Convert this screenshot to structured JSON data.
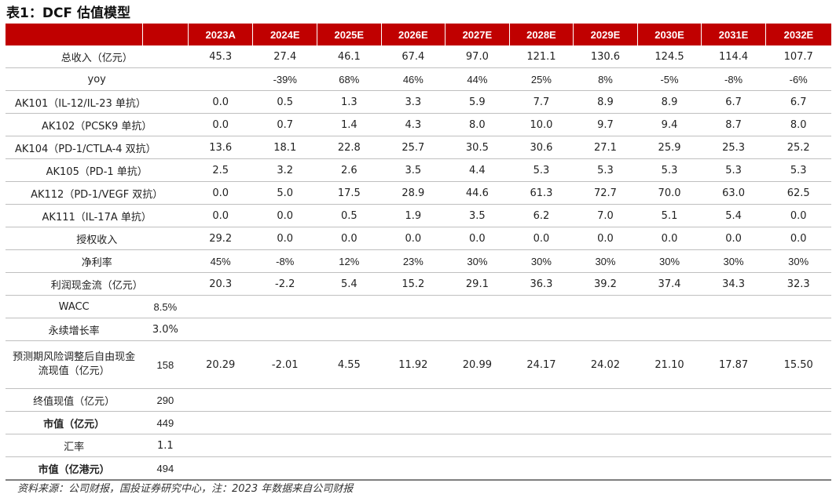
{
  "title": "表1：DCF 估值模型",
  "header": {
    "years": [
      "2023A",
      "2024E",
      "2025E",
      "2026E",
      "2027E",
      "2028E",
      "2029E",
      "2030E",
      "2031E",
      "2032E"
    ]
  },
  "rows": {
    "revenue": {
      "label": "总收入（亿元）",
      "values": [
        "45.3",
        "27.4",
        "46.1",
        "67.4",
        "97.0",
        "121.1",
        "130.6",
        "124.5",
        "114.4",
        "107.7"
      ]
    },
    "yoy": {
      "label": "yoy",
      "values": [
        "",
        "-39%",
        "68%",
        "46%",
        "44%",
        "25%",
        "8%",
        "-5%",
        "-8%",
        "-6%"
      ]
    },
    "ak101": {
      "label": "AK101（IL-12/IL-23 单抗）",
      "values": [
        "0.0",
        "0.5",
        "1.3",
        "3.3",
        "5.9",
        "7.7",
        "8.9",
        "8.9",
        "6.7",
        "6.7"
      ]
    },
    "ak102": {
      "label": "AK102（PCSK9 单抗）",
      "values": [
        "0.0",
        "0.7",
        "1.4",
        "4.3",
        "8.0",
        "10.0",
        "9.7",
        "9.4",
        "8.7",
        "8.0"
      ]
    },
    "ak104": {
      "label": "AK104（PD-1/CTLA-4 双抗）",
      "values": [
        "13.6",
        "18.1",
        "22.8",
        "25.7",
        "30.5",
        "30.6",
        "27.1",
        "25.9",
        "25.3",
        "25.2"
      ]
    },
    "ak105": {
      "label": "AK105（PD-1 单抗）",
      "values": [
        "2.5",
        "3.2",
        "2.6",
        "3.5",
        "4.4",
        "5.3",
        "5.3",
        "5.3",
        "5.3",
        "5.3"
      ]
    },
    "ak112": {
      "label": "AK112（PD-1/VEGF 双抗）",
      "values": [
        "0.0",
        "5.0",
        "17.5",
        "28.9",
        "44.6",
        "61.3",
        "72.7",
        "70.0",
        "63.0",
        "62.5"
      ]
    },
    "ak111": {
      "label": "AK111（IL-17A 单抗）",
      "values": [
        "0.0",
        "0.0",
        "0.5",
        "1.9",
        "3.5",
        "6.2",
        "7.0",
        "5.1",
        "5.4",
        "0.0"
      ]
    },
    "license": {
      "label": "授权收入",
      "values": [
        "29.2",
        "0.0",
        "0.0",
        "0.0",
        "0.0",
        "0.0",
        "0.0",
        "0.0",
        "0.0",
        "0.0"
      ]
    },
    "net_margin": {
      "label": "净利率",
      "values": [
        "45%",
        "-8%",
        "12%",
        "23%",
        "30%",
        "30%",
        "30%",
        "30%",
        "30%",
        "30%"
      ]
    },
    "cashflow": {
      "label": "利润现金流（亿元）",
      "values": [
        "20.3",
        "-2.2",
        "5.4",
        "15.2",
        "29.1",
        "36.3",
        "39.2",
        "37.4",
        "34.3",
        "32.3"
      ]
    },
    "wacc": {
      "label": "WACC",
      "value": "8.5%"
    },
    "growth": {
      "label": "永续增长率",
      "value": "3.0%"
    },
    "pv_fcf": {
      "label": "预测期风险调整后自由现金流现值（亿元）",
      "value": "158",
      "values": [
        "20.29",
        "-2.01",
        "4.55",
        "11.92",
        "20.99",
        "24.17",
        "24.02",
        "21.10",
        "17.87",
        "15.50"
      ]
    },
    "terminal": {
      "label": "终值现值（亿元）",
      "value": "290"
    },
    "market_cap": {
      "label": "市值（亿元）",
      "value": "449"
    },
    "fx": {
      "label": "汇率",
      "value": "1.1"
    },
    "market_cap_hkd": {
      "label": "市值（亿港元）",
      "value": "494"
    }
  },
  "source": "资料来源：公司财报，国投证券研究中心，注：2023 年数据来自公司财报"
}
